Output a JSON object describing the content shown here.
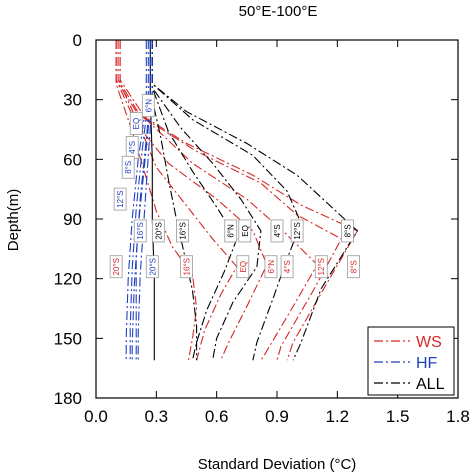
{
  "chart_data": {
    "type": "line",
    "title": "50°E-100°E",
    "xlabel": "Standard Deviation (°C)",
    "ylabel": "Depth(m)",
    "xlim": [
      0,
      1.8
    ],
    "ylim": [
      0,
      180
    ],
    "y_inverted": true,
    "xticks": [
      "0.0",
      "0.3",
      "0.6",
      "0.9",
      "1.2",
      "1.5",
      "1.8"
    ],
    "yticks": [
      "0",
      "30",
      "60",
      "90",
      "120",
      "150",
      "180"
    ],
    "legend_position": "bottom-right",
    "legend": [
      {
        "label": "WS",
        "color": "#d62728",
        "dash": "dash-dot"
      },
      {
        "label": "HF",
        "color": "#1f3fbf",
        "dash": "dash-dot"
      },
      {
        "label": "ALL",
        "color": "#000000",
        "dash": "dash-dot"
      }
    ],
    "series": [
      {
        "group": "WS",
        "color": "#d62728",
        "dash": "dash-dot",
        "points": [
          [
            0.1,
            0
          ],
          [
            0.1,
            20
          ],
          [
            0.2,
            36
          ],
          [
            0.45,
            52
          ],
          [
            0.78,
            68
          ],
          [
            1.02,
            83
          ],
          [
            1.3,
            96
          ],
          [
            1.15,
            122
          ],
          [
            0.98,
            152
          ],
          [
            0.95,
            161
          ]
        ]
      },
      {
        "group": "WS",
        "color": "#d62728",
        "dash": "dash-dot",
        "points": [
          [
            0.11,
            0
          ],
          [
            0.11,
            20
          ],
          [
            0.22,
            38
          ],
          [
            0.5,
            56
          ],
          [
            0.82,
            72
          ],
          [
            1.0,
            88
          ],
          [
            1.22,
            100
          ],
          [
            1.08,
            126
          ],
          [
            0.92,
            154
          ],
          [
            0.9,
            161
          ]
        ]
      },
      {
        "group": "WS",
        "color": "#d62728",
        "dash": "dash-dot",
        "points": [
          [
            0.12,
            0
          ],
          [
            0.12,
            20
          ],
          [
            0.25,
            40
          ],
          [
            0.48,
            62
          ],
          [
            0.75,
            80
          ],
          [
            0.93,
            96
          ],
          [
            1.1,
            113
          ],
          [
            0.98,
            134
          ],
          [
            0.84,
            158
          ],
          [
            0.82,
            161
          ]
        ]
      },
      {
        "group": "WS",
        "color": "#d62728",
        "dash": "dash-dot",
        "points": [
          [
            0.1,
            0
          ],
          [
            0.1,
            20
          ],
          [
            0.2,
            42
          ],
          [
            0.36,
            62
          ],
          [
            0.6,
            80
          ],
          [
            0.78,
            96
          ],
          [
            0.85,
            113
          ],
          [
            0.76,
            132
          ],
          [
            0.66,
            152
          ],
          [
            0.62,
            161
          ]
        ]
      },
      {
        "group": "WS",
        "color": "#d62728",
        "dash": "dash-dot",
        "points": [
          [
            0.12,
            0
          ],
          [
            0.12,
            22
          ],
          [
            0.22,
            44
          ],
          [
            0.3,
            64
          ],
          [
            0.44,
            82
          ],
          [
            0.58,
            100
          ],
          [
            0.7,
            114
          ],
          [
            0.62,
            128
          ],
          [
            0.54,
            146
          ],
          [
            0.5,
            161
          ]
        ]
      },
      {
        "group": "WS",
        "color": "#d62728",
        "dash": "dash-dot",
        "points": [
          [
            0.1,
            0
          ],
          [
            0.1,
            22
          ],
          [
            0.18,
            46
          ],
          [
            0.24,
            66
          ],
          [
            0.3,
            86
          ],
          [
            0.38,
            104
          ],
          [
            0.48,
            118
          ],
          [
            0.5,
            135
          ],
          [
            0.48,
            150
          ],
          [
            0.46,
            161
          ]
        ]
      },
      {
        "group": "ALL",
        "color": "#000000",
        "dash": "dash-dot",
        "points": [
          [
            0.28,
            0
          ],
          [
            0.28,
            22
          ],
          [
            0.45,
            36
          ],
          [
            0.75,
            52
          ],
          [
            1.0,
            68
          ],
          [
            1.15,
            82
          ],
          [
            1.3,
            96
          ],
          [
            1.12,
            125
          ],
          [
            1.02,
            152
          ],
          [
            0.98,
            161
          ]
        ]
      },
      {
        "group": "ALL",
        "color": "#000000",
        "dash": "dash-dot",
        "points": [
          [
            0.28,
            0
          ],
          [
            0.28,
            22
          ],
          [
            0.48,
            40
          ],
          [
            0.78,
            58
          ],
          [
            0.95,
            76
          ],
          [
            1.02,
            92
          ],
          [
            0.95,
            110
          ],
          [
            0.88,
            130
          ],
          [
            0.8,
            152
          ],
          [
            0.78,
            161
          ]
        ]
      },
      {
        "group": "ALL",
        "color": "#000000",
        "dash": "dash-dot",
        "points": [
          [
            0.28,
            0
          ],
          [
            0.28,
            24
          ],
          [
            0.42,
            44
          ],
          [
            0.58,
            62
          ],
          [
            0.72,
            80
          ],
          [
            0.82,
            96
          ],
          [
            0.8,
            114
          ],
          [
            0.68,
            132
          ],
          [
            0.6,
            150
          ],
          [
            0.58,
            161
          ]
        ]
      },
      {
        "group": "ALL",
        "color": "#000000",
        "dash": "dash-dot",
        "points": [
          [
            0.28,
            0
          ],
          [
            0.28,
            24
          ],
          [
            0.36,
            46
          ],
          [
            0.48,
            66
          ],
          [
            0.6,
            84
          ],
          [
            0.7,
            100
          ],
          [
            0.64,
            116
          ],
          [
            0.55,
            136
          ],
          [
            0.5,
            152
          ],
          [
            0.48,
            161
          ]
        ]
      },
      {
        "group": "ALL",
        "color": "#000000",
        "dash": "dash-dot",
        "points": [
          [
            0.27,
            0
          ],
          [
            0.27,
            26
          ],
          [
            0.32,
            48
          ],
          [
            0.36,
            70
          ],
          [
            0.4,
            90
          ],
          [
            0.44,
            108
          ],
          [
            0.48,
            126
          ],
          [
            0.5,
            144
          ],
          [
            0.5,
            161
          ]
        ]
      },
      {
        "group": "ALL",
        "color": "#000000",
        "dash": "solid",
        "points": [
          [
            0.27,
            0
          ],
          [
            0.27,
            30
          ],
          [
            0.28,
            60
          ],
          [
            0.28,
            90
          ],
          [
            0.29,
            120
          ],
          [
            0.29,
            161
          ]
        ]
      },
      {
        "group": "HF",
        "color": "#1f3fbf",
        "dash": "dash-dot",
        "points": [
          [
            0.27,
            0
          ],
          [
            0.27,
            28
          ],
          [
            0.25,
            50
          ],
          [
            0.22,
            80
          ],
          [
            0.2,
            110
          ],
          [
            0.2,
            140
          ],
          [
            0.2,
            161
          ]
        ]
      },
      {
        "group": "HF",
        "color": "#1f3fbf",
        "dash": "dash-dot",
        "points": [
          [
            0.26,
            0
          ],
          [
            0.26,
            30
          ],
          [
            0.23,
            55
          ],
          [
            0.2,
            85
          ],
          [
            0.18,
            115
          ],
          [
            0.17,
            145
          ],
          [
            0.17,
            161
          ]
        ]
      },
      {
        "group": "HF",
        "color": "#1f3fbf",
        "dash": "dash-dot",
        "points": [
          [
            0.28,
            0
          ],
          [
            0.28,
            30
          ],
          [
            0.26,
            58
          ],
          [
            0.24,
            88
          ],
          [
            0.22,
            118
          ],
          [
            0.21,
            148
          ],
          [
            0.21,
            161
          ]
        ]
      },
      {
        "group": "HF",
        "color": "#1f3fbf",
        "dash": "dash-dot",
        "points": [
          [
            0.25,
            0
          ],
          [
            0.25,
            32
          ],
          [
            0.21,
            60
          ],
          [
            0.18,
            90
          ],
          [
            0.16,
            120
          ],
          [
            0.15,
            150
          ],
          [
            0.15,
            161
          ]
        ]
      },
      {
        "group": "HF",
        "color": "#1f3fbf",
        "dash": "dash-dot",
        "points": [
          [
            0.27,
            0
          ],
          [
            0.27,
            34
          ],
          [
            0.24,
            64
          ],
          [
            0.21,
            94
          ],
          [
            0.19,
            124
          ],
          [
            0.18,
            154
          ],
          [
            0.18,
            161
          ]
        ]
      }
    ],
    "annotations": [
      {
        "text": "6°N",
        "x": 0.26,
        "y": 33,
        "group": "HF"
      },
      {
        "text": "EQ",
        "x": 0.2,
        "y": 42,
        "group": "HF"
      },
      {
        "text": "4°S",
        "x": 0.18,
        "y": 54,
        "group": "HF"
      },
      {
        "text": "8°S",
        "x": 0.16,
        "y": 64,
        "group": "HF"
      },
      {
        "text": "12°S",
        "x": 0.12,
        "y": 80,
        "group": "HF"
      },
      {
        "text": "16°S",
        "x": 0.22,
        "y": 96,
        "group": "HF"
      },
      {
        "text": "20°S",
        "x": 0.28,
        "y": 114,
        "group": "HF"
      },
      {
        "text": "20°S",
        "x": 0.1,
        "y": 114,
        "group": "WS"
      },
      {
        "text": "16°S",
        "x": 0.45,
        "y": 114,
        "group": "WS"
      },
      {
        "text": "EQ",
        "x": 0.73,
        "y": 114,
        "group": "WS"
      },
      {
        "text": "6°N",
        "x": 0.87,
        "y": 114,
        "group": "WS"
      },
      {
        "text": "4°S",
        "x": 0.95,
        "y": 114,
        "group": "WS"
      },
      {
        "text": "12°S",
        "x": 1.12,
        "y": 114,
        "group": "WS"
      },
      {
        "text": "8°S",
        "x": 1.28,
        "y": 114,
        "group": "WS"
      },
      {
        "text": "20°S",
        "x": 0.31,
        "y": 96,
        "group": "ALL"
      },
      {
        "text": "16°S",
        "x": 0.43,
        "y": 96,
        "group": "ALL"
      },
      {
        "text": "6°N",
        "x": 0.67,
        "y": 96,
        "group": "ALL"
      },
      {
        "text": "EQ",
        "x": 0.74,
        "y": 96,
        "group": "ALL"
      },
      {
        "text": "4°S",
        "x": 0.9,
        "y": 96,
        "group": "ALL"
      },
      {
        "text": "12°S",
        "x": 1.0,
        "y": 96,
        "group": "ALL"
      },
      {
        "text": "8°S",
        "x": 1.25,
        "y": 96,
        "group": "ALL"
      }
    ]
  }
}
